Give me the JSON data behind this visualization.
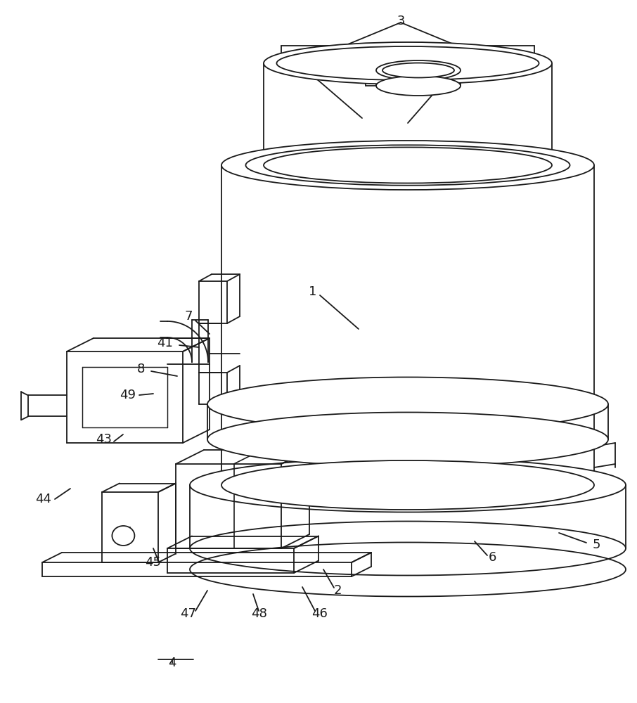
{
  "bg_color": "#ffffff",
  "line_color": "#1a1a1a",
  "line_width": 1.3,
  "fontsize": 13
}
